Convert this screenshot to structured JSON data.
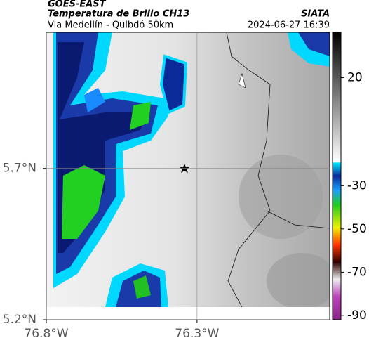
{
  "header": {
    "satellite": "GOES-EAST",
    "title": "Temperatura de Brillo CH13",
    "subtitle": "Via Medellín - Quibdó 50km",
    "source": "SIATA",
    "datetime": "2024-06-27 16:39"
  },
  "map": {
    "xlim": [
      -76.8,
      -75.86
    ],
    "ylim": [
      5.2,
      6.15
    ],
    "xticks": [
      {
        "value": -76.8,
        "label": "76.8°W"
      },
      {
        "value": -76.3,
        "label": "76.3°W"
      }
    ],
    "yticks": [
      {
        "value": 5.2,
        "label": "5.2°N"
      },
      {
        "value": 5.7,
        "label": "5.7°N"
      }
    ],
    "grid": true
  },
  "colorbar": {
    "lim": [
      -92,
      41
    ],
    "ticks": [
      20,
      -30,
      -50,
      -70,
      -90
    ]
  }
}
